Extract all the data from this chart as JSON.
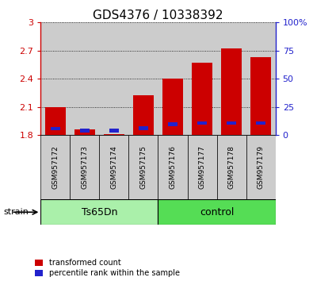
{
  "title": "GDS4376 / 10338392",
  "samples": [
    "GSM957172",
    "GSM957173",
    "GSM957174",
    "GSM957175",
    "GSM957176",
    "GSM957177",
    "GSM957178",
    "GSM957179"
  ],
  "red_values": [
    2.1,
    1.855,
    1.812,
    2.22,
    2.4,
    2.57,
    2.725,
    2.63
  ],
  "blue_values": [
    1.865,
    1.845,
    1.845,
    1.87,
    1.915,
    1.925,
    1.925,
    1.925
  ],
  "ymin": 1.8,
  "ymax": 3.0,
  "yticks": [
    1.8,
    2.1,
    2.4,
    2.7,
    3.0
  ],
  "ytick_labels": [
    "1.8",
    "2.1",
    "2.4",
    "2.7",
    "3"
  ],
  "y2ticks_pct": [
    0,
    25,
    50,
    75,
    100
  ],
  "y2tick_labels": [
    "0",
    "25",
    "50",
    "75",
    "100%"
  ],
  "groups": [
    {
      "label": "Ts65Dn",
      "start": 0,
      "end": 4,
      "color": "#aaf0aa"
    },
    {
      "label": "control",
      "start": 4,
      "end": 8,
      "color": "#55dd55"
    }
  ],
  "group_row_label": "strain",
  "bar_width": 0.7,
  "blue_bar_width": 0.32,
  "red_color": "#cc0000",
  "blue_color": "#2222cc",
  "bg_color": "#cccccc",
  "plot_bg": "#ffffff",
  "title_fontsize": 11,
  "tick_fontsize": 8,
  "label_fontsize": 8
}
